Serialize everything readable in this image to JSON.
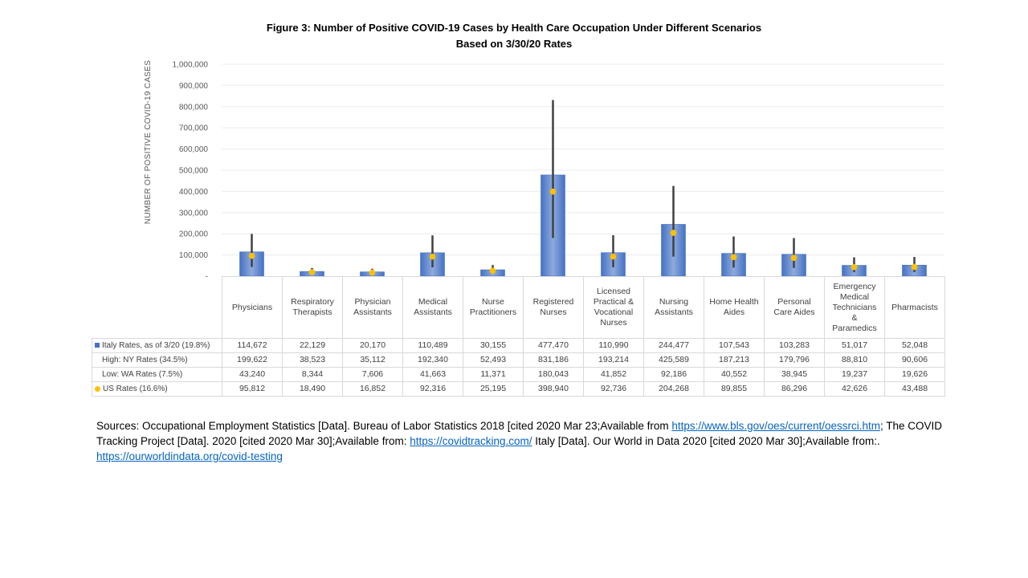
{
  "title_line1": "Figure 3: Number of Positive COVID-19 Cases by Health Care Occupation Under Different Scenarios",
  "title_line2": "Based on 3/30/20 Rates",
  "chart_data": {
    "type": "bar",
    "title": "Figure 3: Number of Positive COVID-19 Cases by Health Care Occupation Under Different Scenarios Based on 3/30/20 Rates",
    "ylabel": "NUMBER OF POSITIVE COVID-19 CASES",
    "ylim": [
      0,
      1000000
    ],
    "yticks": [
      "-",
      "100,000",
      "200,000",
      "300,000",
      "400,000",
      "500,000",
      "600,000",
      "700,000",
      "800,000",
      "900,000",
      "1,000,000"
    ],
    "grid": true,
    "categories": [
      "Physicians",
      "Respiratory Therapists",
      "Physician Assistants",
      "Medical Assistants",
      "Nurse Practitioners",
      "Registered Nurses",
      "Licensed Practical & Vocational Nurses",
      "Nursing Assistants",
      "Home Health Aides",
      "Personal Care Aides",
      "Emergency Medical Technicians & Paramedics",
      "Pharmacists"
    ],
    "category_lines": [
      [
        "Physicians"
      ],
      [
        "Respiratory",
        "Therapists"
      ],
      [
        "Physician",
        "Assistants"
      ],
      [
        "Medical",
        "Assistants"
      ],
      [
        "Nurse",
        "Practitioners"
      ],
      [
        "Registered",
        "Nurses"
      ],
      [
        "Licensed",
        "Practical &",
        "Vocational",
        "Nurses"
      ],
      [
        "Nursing",
        "Assistants"
      ],
      [
        "Home Health",
        "Aides"
      ],
      [
        "Personal",
        "Care Aides"
      ],
      [
        "Emergency",
        "Medical",
        "Technicians",
        "&",
        "Paramedics"
      ],
      [
        "Pharmacists"
      ]
    ],
    "series": [
      {
        "name": "Italy Rates, as of 3/20 (19.8%)",
        "marker": "bar",
        "color": "#4472c4",
        "values": [
          114672,
          22129,
          20170,
          110489,
          30155,
          477470,
          110990,
          244477,
          107543,
          103283,
          51017,
          52048
        ],
        "labels": [
          "114,672",
          "22,129",
          "20,170",
          "110,489",
          "30,155",
          "477,470",
          "110,990",
          "244,477",
          "107,543",
          "103,283",
          "51,017",
          "52,048"
        ]
      },
      {
        "name": "High: NY Rates (34.5%)",
        "marker": "none",
        "values": [
          199622,
          38523,
          35112,
          192340,
          52493,
          831186,
          193214,
          425589,
          187213,
          179796,
          88810,
          90606
        ],
        "labels": [
          "199,622",
          "38,523",
          "35,112",
          "192,340",
          "52,493",
          "831,186",
          "193,214",
          "425,589",
          "187,213",
          "179,796",
          "88,810",
          "90,606"
        ]
      },
      {
        "name": "Low: WA Rates (7.5%)",
        "marker": "none",
        "values": [
          43240,
          8344,
          7606,
          41663,
          11371,
          180043,
          41852,
          92186,
          40552,
          38945,
          19237,
          19626
        ],
        "labels": [
          "43,240",
          "8,344",
          "7,606",
          "41,663",
          "11,371",
          "180,043",
          "41,852",
          "92,186",
          "40,552",
          "38,945",
          "19,237",
          "19,626"
        ]
      },
      {
        "name": "US Rates (16.6%)",
        "marker": "dot",
        "color": "#ffc000",
        "values": [
          95812,
          18490,
          16852,
          92316,
          25195,
          398940,
          92736,
          204268,
          89855,
          86296,
          42626,
          43488
        ],
        "labels": [
          "95,812",
          "18,490",
          "16,852",
          "92,316",
          "25,195",
          "398,940",
          "92,736",
          "204,268",
          "89,855",
          "86,296",
          "42,626",
          "43,488"
        ]
      }
    ],
    "range_line_color": "#404040"
  },
  "sources": {
    "part1": "Sources: Occupational Employment Statistics [Data]. Bureau of Labor Statistics 2018 [cited 2020  Mar 23;Available from ",
    "link1": "https://www.bls.gov/oes/current/oessrci.htm",
    "part2": "; The COVID Tracking Project [Data]. 2020  [cited 2020 Mar 30];Available from: ",
    "link2": "https://covidtracking.com/",
    "part3": " Italy [Data]. Our World in Data 2020  [cited 2020 Mar 30];Available from:. ",
    "link3": "https://ourworldindata.org/covid-testing"
  }
}
